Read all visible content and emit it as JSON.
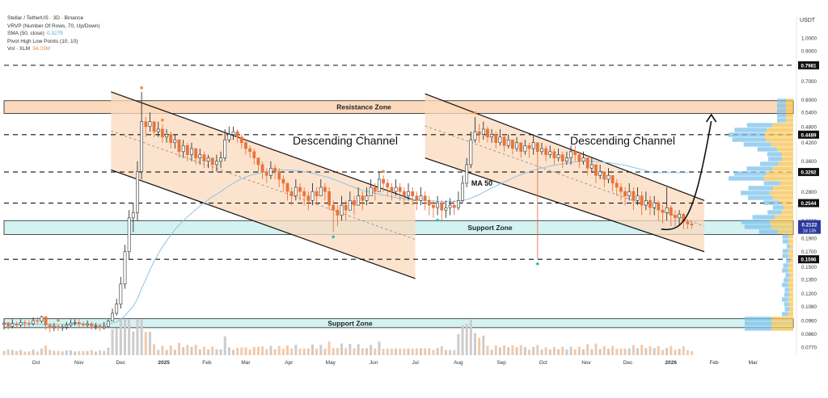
{
  "header": {
    "symbol_line": "Stellar / TetherUS · 3D · Binance",
    "indicators": [
      {
        "label": "VRVP (Number Of Rows, 70, Up/Down)",
        "value": ""
      },
      {
        "label": "SMA (50, close)",
        "value": "0.3279",
        "color": "#5aa7d6"
      },
      {
        "label": "Pivot High Low Points (10, 10)",
        "value": ""
      },
      {
        "label": "Vol · XLM",
        "value": "34.03M",
        "color": "#e08a3c"
      }
    ],
    "currency": "USDT"
  },
  "colors": {
    "up": "#ffffff",
    "down": "#e8743b",
    "sma": "#8ec5e8",
    "channel_fill": "#fbd9bd",
    "resistance_fill": "#fbd9bd",
    "support_fill": "#d4f2f2",
    "vrvp_up": "#7cc1ec",
    "vrvp_down": "#f5c24f"
  },
  "chart_data": {
    "type": "candlestick",
    "x_ticks": [
      "Oct",
      "Nov",
      "Dec",
      "2025",
      "Feb",
      "Mar",
      "Apr",
      "May",
      "Jun",
      "Jul",
      "Aug",
      "Sep",
      "Oct",
      "Nov",
      "Dec",
      "2026",
      "Feb",
      "Mar"
    ],
    "y_ticks": [
      "1.0000",
      "0.9000",
      "0.7000",
      "0.6000",
      "0.5400",
      "0.4800",
      "0.4200",
      "0.3600",
      "0.2800",
      "0.2200",
      "0.1900",
      "0.1700",
      "0.1500",
      "0.1350",
      "0.1200",
      "0.1080",
      "0.0960",
      "0.0860",
      "0.0770"
    ],
    "y_scale": "log",
    "y_range": [
      0.072,
      1.2
    ],
    "price_levels": [
      "0.7981",
      "0.4489",
      "0.3292",
      "0.2544",
      "0.1596"
    ],
    "current_price": "0.2122",
    "countdown": "1d 13h",
    "zones": [
      {
        "label": "Resistance Zone",
        "low": 0.535,
        "high": 0.595
      },
      {
        "label": "Support Zone",
        "low": 0.196,
        "high": 0.22
      },
      {
        "label": "Support Zone",
        "low": 0.0905,
        "high": 0.0975
      }
    ],
    "annotations": [
      "Descending Channel",
      "Descending Channel",
      "MA 50"
    ],
    "candles": {
      "start": "2024-09-08",
      "interval_days": 3,
      "close": [
        0.094,
        0.0915,
        0.0935,
        0.0925,
        0.0945,
        0.094,
        0.0935,
        0.096,
        0.0955,
        0.099,
        0.0925,
        0.0905,
        0.0915,
        0.0905,
        0.091,
        0.0925,
        0.094,
        0.0945,
        0.0935,
        0.0925,
        0.0935,
        0.0915,
        0.092,
        0.0905,
        0.0915,
        0.0955,
        0.102,
        0.11,
        0.13,
        0.17,
        0.225,
        0.235,
        0.33,
        0.5,
        0.48,
        0.5,
        0.46,
        0.47,
        0.44,
        0.45,
        0.42,
        0.43,
        0.39,
        0.41,
        0.38,
        0.4,
        0.37,
        0.38,
        0.36,
        0.37,
        0.35,
        0.36,
        0.37,
        0.43,
        0.45,
        0.46,
        0.44,
        0.42,
        0.4,
        0.39,
        0.37,
        0.35,
        0.33,
        0.32,
        0.34,
        0.33,
        0.31,
        0.3,
        0.28,
        0.27,
        0.29,
        0.28,
        0.27,
        0.26,
        0.28,
        0.27,
        0.29,
        0.28,
        0.25,
        0.24,
        0.23,
        0.25,
        0.24,
        0.26,
        0.25,
        0.27,
        0.26,
        0.27,
        0.29,
        0.28,
        0.31,
        0.3,
        0.29,
        0.28,
        0.29,
        0.28,
        0.27,
        0.28,
        0.27,
        0.26,
        0.27,
        0.26,
        0.25,
        0.245,
        0.255,
        0.24,
        0.245,
        0.25,
        0.245,
        0.26,
        0.3,
        0.35,
        0.43,
        0.46,
        0.45,
        0.47,
        0.44,
        0.45,
        0.42,
        0.44,
        0.41,
        0.43,
        0.4,
        0.42,
        0.39,
        0.41,
        0.4,
        0.42,
        0.39,
        0.4,
        0.38,
        0.39,
        0.37,
        0.38,
        0.36,
        0.37,
        0.39,
        0.38,
        0.36,
        0.37,
        0.34,
        0.35,
        0.32,
        0.33,
        0.31,
        0.32,
        0.3,
        0.29,
        0.28,
        0.27,
        0.28,
        0.26,
        0.27,
        0.25,
        0.26,
        0.245,
        0.255,
        0.24,
        0.235,
        0.245,
        0.23,
        0.225,
        0.232,
        0.218,
        0.214,
        0.2122
      ],
      "high": [
        0.097,
        0.095,
        0.097,
        0.095,
        0.097,
        0.0965,
        0.096,
        0.0985,
        0.099,
        0.1,
        0.097,
        0.094,
        0.094,
        0.093,
        0.093,
        0.095,
        0.097,
        0.097,
        0.097,
        0.095,
        0.096,
        0.095,
        0.094,
        0.093,
        0.095,
        0.097,
        0.106,
        0.115,
        0.138,
        0.18,
        0.24,
        0.255,
        0.36,
        0.64,
        0.52,
        0.54,
        0.5,
        0.5,
        0.49,
        0.47,
        0.46,
        0.45,
        0.43,
        0.43,
        0.42,
        0.42,
        0.4,
        0.4,
        0.39,
        0.38,
        0.37,
        0.38,
        0.39,
        0.47,
        0.48,
        0.48,
        0.47,
        0.45,
        0.43,
        0.41,
        0.4,
        0.37,
        0.36,
        0.34,
        0.36,
        0.35,
        0.34,
        0.32,
        0.3,
        0.29,
        0.31,
        0.3,
        0.29,
        0.28,
        0.3,
        0.29,
        0.31,
        0.3,
        0.29,
        0.26,
        0.25,
        0.27,
        0.26,
        0.28,
        0.27,
        0.29,
        0.28,
        0.29,
        0.31,
        0.3,
        0.33,
        0.32,
        0.31,
        0.3,
        0.31,
        0.3,
        0.29,
        0.3,
        0.29,
        0.28,
        0.29,
        0.28,
        0.27,
        0.26,
        0.27,
        0.26,
        0.26,
        0.265,
        0.26,
        0.28,
        0.32,
        0.37,
        0.46,
        0.52,
        0.49,
        0.5,
        0.48,
        0.47,
        0.46,
        0.47,
        0.45,
        0.45,
        0.43,
        0.44,
        0.42,
        0.43,
        0.42,
        0.45,
        0.42,
        0.42,
        0.41,
        0.41,
        0.4,
        0.4,
        0.39,
        0.39,
        0.41,
        0.41,
        0.39,
        0.39,
        0.37,
        0.37,
        0.35,
        0.35,
        0.33,
        0.34,
        0.32,
        0.31,
        0.3,
        0.29,
        0.3,
        0.29,
        0.29,
        0.28,
        0.28,
        0.27,
        0.27,
        0.26,
        0.25,
        0.29,
        0.25,
        0.24,
        0.24,
        0.235,
        0.222,
        0.218
      ],
      "low": [
        0.089,
        0.089,
        0.09,
        0.09,
        0.091,
        0.091,
        0.091,
        0.092,
        0.093,
        0.094,
        0.089,
        0.087,
        0.088,
        0.088,
        0.088,
        0.089,
        0.091,
        0.092,
        0.091,
        0.09,
        0.091,
        0.089,
        0.089,
        0.088,
        0.089,
        0.091,
        0.096,
        0.1,
        0.106,
        0.125,
        0.16,
        0.2,
        0.22,
        0.31,
        0.44,
        0.46,
        0.44,
        0.44,
        0.42,
        0.42,
        0.4,
        0.4,
        0.37,
        0.37,
        0.36,
        0.36,
        0.35,
        0.35,
        0.34,
        0.34,
        0.33,
        0.33,
        0.34,
        0.36,
        0.42,
        0.43,
        0.42,
        0.4,
        0.38,
        0.37,
        0.35,
        0.33,
        0.31,
        0.3,
        0.31,
        0.31,
        0.29,
        0.28,
        0.26,
        0.25,
        0.26,
        0.26,
        0.25,
        0.24,
        0.25,
        0.25,
        0.27,
        0.26,
        0.24,
        0.2,
        0.21,
        0.22,
        0.22,
        0.24,
        0.23,
        0.25,
        0.24,
        0.25,
        0.27,
        0.26,
        0.28,
        0.28,
        0.27,
        0.26,
        0.27,
        0.26,
        0.25,
        0.26,
        0.25,
        0.24,
        0.25,
        0.24,
        0.23,
        0.225,
        0.23,
        0.22,
        0.225,
        0.23,
        0.23,
        0.24,
        0.255,
        0.29,
        0.34,
        0.42,
        0.42,
        0.43,
        0.42,
        0.42,
        0.4,
        0.41,
        0.39,
        0.4,
        0.38,
        0.39,
        0.37,
        0.38,
        0.37,
        0.38,
        0.16,
        0.38,
        0.36,
        0.37,
        0.35,
        0.36,
        0.34,
        0.35,
        0.35,
        0.36,
        0.34,
        0.35,
        0.32,
        0.33,
        0.3,
        0.31,
        0.29,
        0.3,
        0.28,
        0.27,
        0.26,
        0.25,
        0.26,
        0.24,
        0.25,
        0.23,
        0.24,
        0.23,
        0.23,
        0.22,
        0.215,
        0.22,
        0.21,
        0.21,
        0.21,
        0.205,
        0.205,
        0.205
      ]
    },
    "sma50": {
      "start_index": 0,
      "values": [
        0.094,
        0.094,
        0.094,
        0.093,
        0.093,
        0.093,
        0.093,
        0.093,
        0.093,
        0.093,
        0.093,
        0.093,
        0.093,
        0.093,
        0.093,
        0.093,
        0.093,
        0.093,
        0.093,
        0.093,
        0.093,
        0.093,
        0.093,
        0.093,
        0.093,
        0.093,
        0.094,
        0.095,
        0.097,
        0.1,
        0.104,
        0.108,
        0.115,
        0.125,
        0.135,
        0.146,
        0.157,
        0.167,
        0.177,
        0.186,
        0.195,
        0.204,
        0.212,
        0.22,
        0.227,
        0.234,
        0.241,
        0.248,
        0.255,
        0.262,
        0.268,
        0.274,
        0.28,
        0.287,
        0.294,
        0.3,
        0.306,
        0.311,
        0.316,
        0.32,
        0.323,
        0.326,
        0.328,
        0.33,
        0.332,
        0.333,
        0.334,
        0.335,
        0.335,
        0.334,
        0.333,
        0.332,
        0.33,
        0.328,
        0.326,
        0.323,
        0.32,
        0.317,
        0.314,
        0.31,
        0.306,
        0.302,
        0.298,
        0.294,
        0.29,
        0.286,
        0.283,
        0.28,
        0.278,
        0.276,
        0.274,
        0.272,
        0.27,
        0.268,
        0.266,
        0.265,
        0.264,
        0.263,
        0.262,
        0.261,
        0.26,
        0.26,
        0.259,
        0.259,
        0.258,
        0.258,
        0.258,
        0.258,
        0.258,
        0.259,
        0.26,
        0.262,
        0.265,
        0.269,
        0.273,
        0.278,
        0.283,
        0.288,
        0.293,
        0.298,
        0.303,
        0.308,
        0.313,
        0.318,
        0.322,
        0.326,
        0.33,
        0.334,
        0.337,
        0.34,
        0.343,
        0.346,
        0.348,
        0.35,
        0.352,
        0.354,
        0.356,
        0.358,
        0.359,
        0.36,
        0.36,
        0.36,
        0.359,
        0.358,
        0.357,
        0.356,
        0.354,
        0.352,
        0.35,
        0.348,
        0.345,
        0.342,
        0.339,
        0.336,
        0.333,
        0.33,
        0.327,
        0.3279,
        0.3279,
        0.3279,
        0.3279,
        0.3279,
        0.3279,
        0.3279,
        0.3279
      ]
    },
    "channels": [
      {
        "label": "Descending Channel",
        "upper": [
          [
            "2024-11-24",
            0.64
          ],
          [
            "2025-07-01",
            0.26
          ]
        ],
        "lower": [
          [
            "2024-11-24",
            0.335
          ],
          [
            "2025-07-01",
            0.136
          ]
        ]
      },
      {
        "label": "Descending Channel",
        "upper": [
          [
            "2025-07-08",
            0.63
          ],
          [
            "2026-01-25",
            0.26
          ]
        ],
        "lower": [
          [
            "2025-07-08",
            0.37
          ],
          [
            "2026-01-25",
            0.17
          ]
        ]
      }
    ],
    "projection": {
      "from": [
        "2025-12-25",
        0.205
      ],
      "to": [
        "2026-01-30",
        0.53
      ]
    }
  }
}
